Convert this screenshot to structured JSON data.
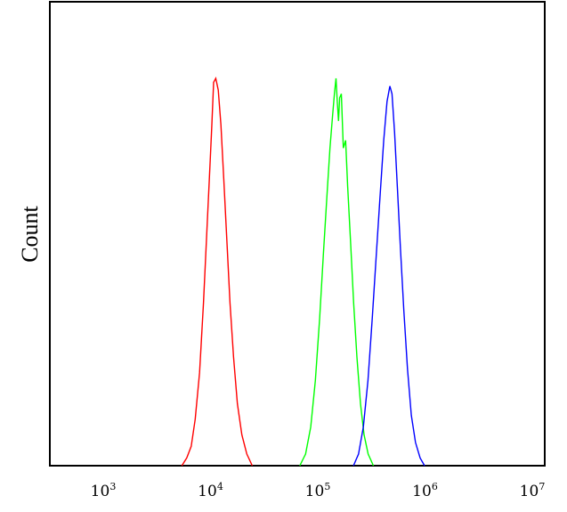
{
  "chart_data": {
    "type": "line",
    "title": "",
    "xlabel": "",
    "ylabel": "Count",
    "x_scale": "log",
    "xlim": [
      1000,
      10000000
    ],
    "ylim": [
      0,
      100
    ],
    "grid": false,
    "legend": "none",
    "x_ticks": [
      {
        "value": 1000,
        "base": "10",
        "exp": "3"
      },
      {
        "value": 10000,
        "base": "10",
        "exp": "4"
      },
      {
        "value": 100000,
        "base": "10",
        "exp": "5"
      },
      {
        "value": 1000000,
        "base": "10",
        "exp": "6"
      },
      {
        "value": 10000000,
        "base": "10",
        "exp": "7"
      }
    ],
    "series": [
      {
        "color": "#ff0000",
        "points": [
          [
            5400,
            0
          ],
          [
            6000,
            2
          ],
          [
            6600,
            5
          ],
          [
            7200,
            12
          ],
          [
            7900,
            24
          ],
          [
            8600,
            42
          ],
          [
            9300,
            62
          ],
          [
            9900,
            78
          ],
          [
            10300,
            88
          ],
          [
            10700,
            99
          ],
          [
            11200,
            100
          ],
          [
            11800,
            97
          ],
          [
            12500,
            88
          ],
          [
            13300,
            74
          ],
          [
            14200,
            58
          ],
          [
            15200,
            42
          ],
          [
            16400,
            28
          ],
          [
            17800,
            16
          ],
          [
            19600,
            8
          ],
          [
            21800,
            3
          ],
          [
            24500,
            0
          ]
        ]
      },
      {
        "color": "#00ff00",
        "points": [
          [
            68000,
            0
          ],
          [
            77000,
            3
          ],
          [
            86000,
            10
          ],
          [
            95000,
            22
          ],
          [
            104000,
            38
          ],
          [
            113000,
            55
          ],
          [
            122000,
            70
          ],
          [
            130000,
            82
          ],
          [
            137000,
            90
          ],
          [
            143000,
            96
          ],
          [
            148000,
            100
          ],
          [
            152000,
            94
          ],
          [
            156000,
            89
          ],
          [
            160000,
            95
          ],
          [
            166000,
            96
          ],
          [
            173000,
            82
          ],
          [
            182000,
            84
          ],
          [
            190000,
            72
          ],
          [
            202000,
            58
          ],
          [
            216000,
            42
          ],
          [
            232000,
            28
          ],
          [
            250000,
            16
          ],
          [
            270000,
            8
          ],
          [
            295000,
            3
          ],
          [
            330000,
            0
          ]
        ]
      },
      {
        "color": "#0000ff",
        "points": [
          [
            215000,
            0
          ],
          [
            240000,
            3
          ],
          [
            266000,
            10
          ],
          [
            294000,
            22
          ],
          [
            322000,
            38
          ],
          [
            352000,
            55
          ],
          [
            382000,
            70
          ],
          [
            412000,
            84
          ],
          [
            442000,
            94
          ],
          [
            470000,
            98
          ],
          [
            492000,
            96
          ],
          [
            520000,
            86
          ],
          [
            552000,
            72
          ],
          [
            590000,
            56
          ],
          [
            634000,
            40
          ],
          [
            686000,
            25
          ],
          [
            745000,
            13
          ],
          [
            815000,
            6
          ],
          [
            900000,
            2
          ],
          [
            990000,
            0
          ]
        ]
      }
    ]
  }
}
